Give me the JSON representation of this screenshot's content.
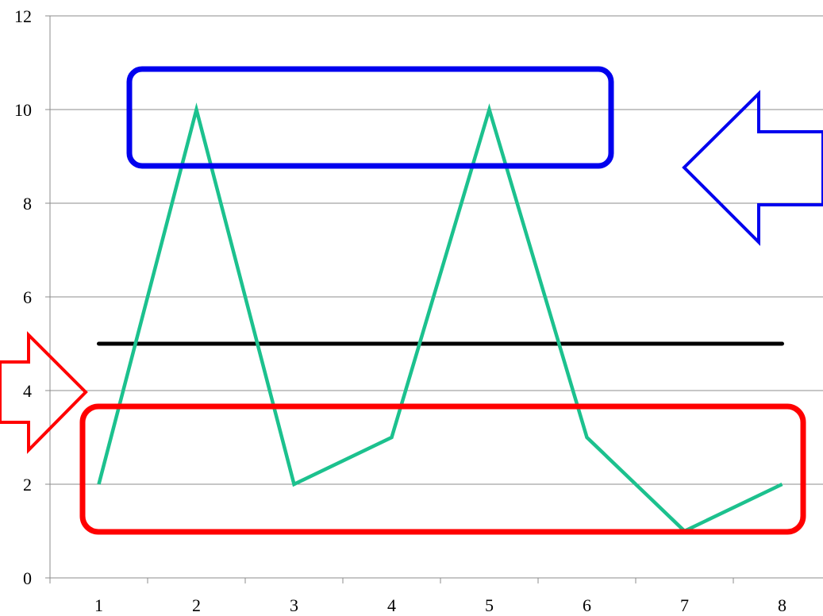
{
  "chart_data": {
    "type": "line",
    "title": "",
    "xlabel": "",
    "ylabel": "",
    "categories": [
      "1",
      "2",
      "3",
      "4",
      "5",
      "6",
      "7",
      "8"
    ],
    "series": [
      {
        "values": [
          2,
          10,
          2,
          3,
          10,
          3,
          1,
          2
        ],
        "color": "#1cc18e"
      }
    ],
    "reference_line": {
      "value": 5,
      "color": "#000000"
    },
    "ylim": [
      0,
      12
    ],
    "yticks": [
      "0",
      "2",
      "4",
      "6",
      "8",
      "10",
      "12"
    ],
    "grid": true,
    "legend": "none",
    "annotations": [
      {
        "type": "box",
        "color": "#0000ee",
        "note": "highlights peaks near 10"
      },
      {
        "type": "box",
        "color": "#ff0000",
        "note": "highlights troughs near 1-3"
      },
      {
        "type": "arrow",
        "direction": "left",
        "color": "#0000ee"
      },
      {
        "type": "arrow",
        "direction": "right",
        "color": "#ff0000"
      }
    ]
  }
}
